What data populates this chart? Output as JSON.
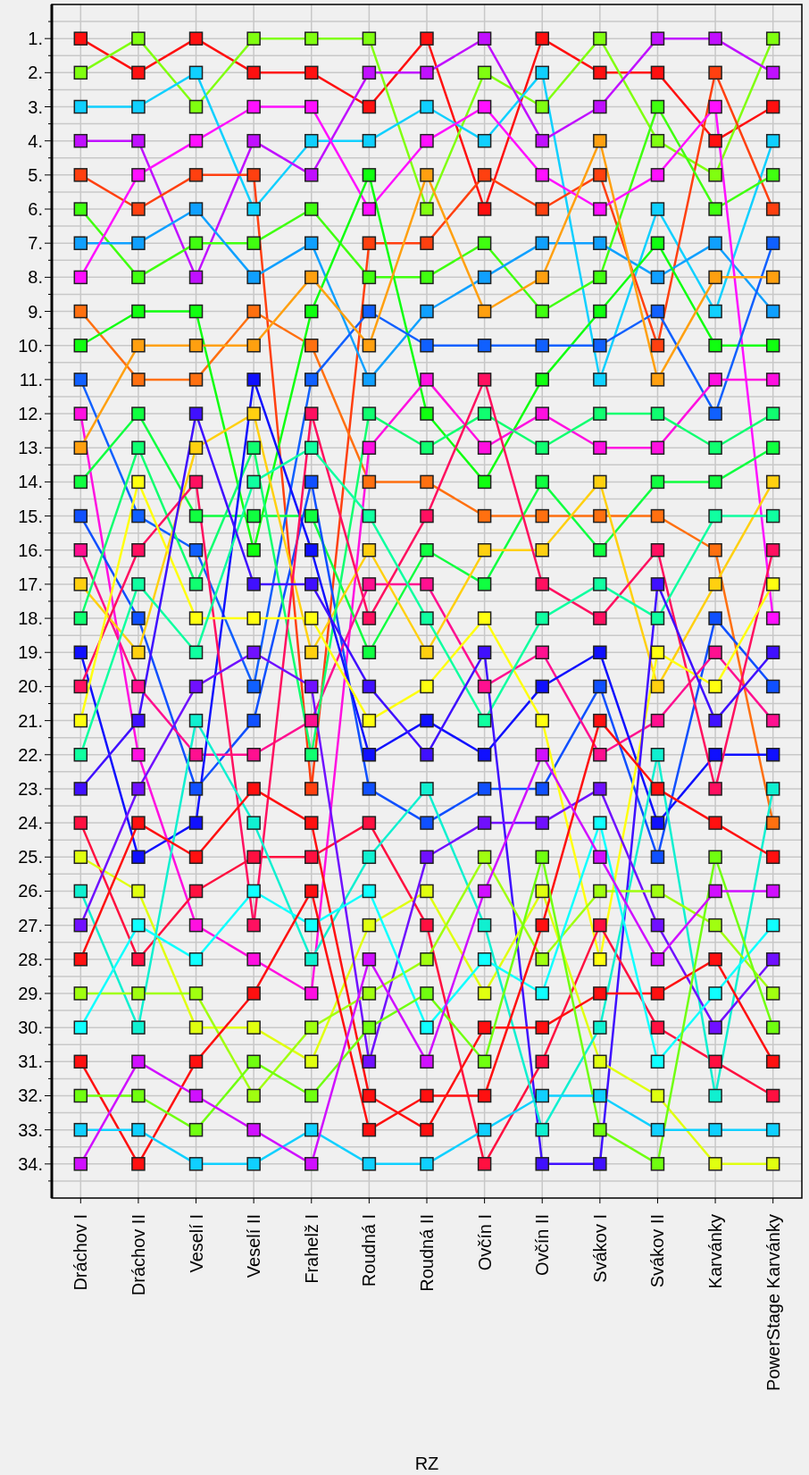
{
  "chart_data": {
    "type": "line",
    "xlabel": "RZ",
    "categories": [
      "Dráchov I",
      "Dráchov II",
      "Veselí I",
      "Veselí II",
      "Frahelž I",
      "Roudná I",
      "Roudná II",
      "Ovčín I",
      "Ovčín II",
      "Svákov I",
      "Svákov II",
      "Karvánky",
      "PowerStage Karvánky"
    ],
    "ylim": [
      35,
      0
    ],
    "yticks": [
      {
        "value": 0.5,
        "label": null
      },
      {
        "value": 1,
        "label": "1."
      },
      {
        "value": 1.5,
        "label": null
      },
      {
        "value": 2,
        "label": "2."
      },
      {
        "value": 2.5,
        "label": null
      },
      {
        "value": 3,
        "label": "3."
      },
      {
        "value": 3.5,
        "label": null
      },
      {
        "value": 4,
        "label": "4."
      },
      {
        "value": 4.5,
        "label": null
      },
      {
        "value": 5,
        "label": "5."
      },
      {
        "value": 5.5,
        "label": null
      },
      {
        "value": 6,
        "label": "6."
      },
      {
        "value": 6.5,
        "label": null
      },
      {
        "value": 7,
        "label": "7."
      },
      {
        "value": 7.5,
        "label": null
      },
      {
        "value": 8,
        "label": "8."
      },
      {
        "value": 8.5,
        "label": null
      },
      {
        "value": 9,
        "label": "9."
      },
      {
        "value": 9.5,
        "label": null
      },
      {
        "value": 10,
        "label": "10."
      },
      {
        "value": 10.5,
        "label": null
      },
      {
        "value": 11,
        "label": "11."
      },
      {
        "value": 11.5,
        "label": null
      },
      {
        "value": 12,
        "label": "12."
      },
      {
        "value": 12.5,
        "label": null
      },
      {
        "value": 13,
        "label": "13."
      },
      {
        "value": 13.5,
        "label": null
      },
      {
        "value": 14,
        "label": "14."
      },
      {
        "value": 14.5,
        "label": null
      },
      {
        "value": 15,
        "label": "15."
      },
      {
        "value": 15.5,
        "label": null
      },
      {
        "value": 16,
        "label": "16."
      },
      {
        "value": 16.5,
        "label": null
      },
      {
        "value": 17,
        "label": "17."
      },
      {
        "value": 17.5,
        "label": null
      },
      {
        "value": 18,
        "label": "18."
      },
      {
        "value": 18.5,
        "label": null
      },
      {
        "value": 19,
        "label": "19."
      },
      {
        "value": 19.5,
        "label": null
      },
      {
        "value": 20,
        "label": "20."
      },
      {
        "value": 20.5,
        "label": null
      },
      {
        "value": 21,
        "label": "21."
      },
      {
        "value": 21.5,
        "label": null
      },
      {
        "value": 22,
        "label": "22."
      },
      {
        "value": 22.5,
        "label": null
      },
      {
        "value": 23,
        "label": "23."
      },
      {
        "value": 23.5,
        "label": null
      },
      {
        "value": 24,
        "label": "24."
      },
      {
        "value": 24.5,
        "label": null
      },
      {
        "value": 25,
        "label": "25."
      },
      {
        "value": 25.5,
        "label": null
      },
      {
        "value": 26,
        "label": "26."
      },
      {
        "value": 26.5,
        "label": null
      },
      {
        "value": 27,
        "label": "27."
      },
      {
        "value": 27.5,
        "label": null
      },
      {
        "value": 28,
        "label": "28."
      },
      {
        "value": 28.5,
        "label": null
      },
      {
        "value": 29,
        "label": "29."
      },
      {
        "value": 29.5,
        "label": null
      },
      {
        "value": 30,
        "label": "30."
      },
      {
        "value": 30.5,
        "label": null
      },
      {
        "value": 31,
        "label": "31."
      },
      {
        "value": 31.5,
        "label": null
      },
      {
        "value": 32,
        "label": "32."
      },
      {
        "value": 32.5,
        "label": null
      },
      {
        "value": 33,
        "label": "33."
      },
      {
        "value": 33.5,
        "label": null
      },
      {
        "value": 34,
        "label": "34."
      },
      {
        "value": 34.5,
        "label": null
      }
    ],
    "grid": true,
    "marker": "square",
    "line_style": "solid",
    "series": [
      {
        "color": "#ff1010",
        "values": [
          1,
          2,
          1,
          2,
          2,
          3,
          1,
          6,
          1,
          2,
          2,
          4,
          3
        ]
      },
      {
        "color": "#80ff10",
        "values": [
          2,
          1,
          3,
          1,
          1,
          1,
          6,
          2,
          3,
          1,
          4,
          5,
          1
        ]
      },
      {
        "color": "#10d0ff",
        "values": [
          3,
          3,
          2,
          6,
          4,
          4,
          3,
          4,
          2,
          11,
          6,
          9,
          4
        ]
      },
      {
        "color": "#c010ff",
        "values": [
          4,
          4,
          8,
          4,
          5,
          2,
          2,
          1,
          4,
          3,
          1,
          1,
          2
        ]
      },
      {
        "color": "#ff4010",
        "values": [
          5,
          6,
          5,
          5,
          23,
          7,
          7,
          5,
          6,
          5,
          10,
          2,
          6
        ]
      },
      {
        "color": "#40ff10",
        "values": [
          6,
          8,
          7,
          7,
          6,
          8,
          8,
          7,
          9,
          8,
          3,
          6,
          5
        ]
      },
      {
        "color": "#10a0ff",
        "values": [
          7,
          7,
          6,
          8,
          7,
          11,
          9,
          8,
          7,
          7,
          8,
          7,
          9
        ]
      },
      {
        "color": "#ff10ff",
        "values": [
          8,
          5,
          4,
          3,
          3,
          6,
          4,
          3,
          5,
          6,
          5,
          3,
          18
        ]
      },
      {
        "color": "#ff7010",
        "values": [
          9,
          11,
          11,
          9,
          10,
          14,
          14,
          15,
          15,
          15,
          15,
          16,
          24
        ]
      },
      {
        "color": "#10ff10",
        "values": [
          10,
          9,
          9,
          16,
          9,
          5,
          12,
          14,
          11,
          9,
          7,
          10,
          10
        ]
      },
      {
        "color": "#1060ff",
        "values": [
          11,
          15,
          16,
          20,
          11,
          9,
          10,
          10,
          10,
          10,
          9,
          12,
          7
        ]
      },
      {
        "color": "#ff10e0",
        "values": [
          12,
          22,
          27,
          28,
          29,
          13,
          11,
          13,
          12,
          13,
          13,
          11,
          11
        ]
      },
      {
        "color": "#ffa010",
        "values": [
          13,
          10,
          10,
          10,
          8,
          10,
          5,
          9,
          8,
          4,
          11,
          8,
          8
        ]
      },
      {
        "color": "#10ff40",
        "values": [
          14,
          12,
          15,
          15,
          15,
          19,
          16,
          17,
          14,
          16,
          14,
          14,
          13
        ]
      },
      {
        "color": "#1050ff",
        "values": [
          15,
          18,
          23,
          21,
          14,
          23,
          24,
          23,
          23,
          20,
          25,
          18,
          20
        ]
      },
      {
        "color": "#ff1090",
        "values": [
          16,
          20,
          22,
          22,
          21,
          17,
          17,
          20,
          19,
          22,
          21,
          19,
          21
        ]
      },
      {
        "color": "#ffd010",
        "values": [
          17,
          19,
          13,
          12,
          19,
          16,
          19,
          16,
          16,
          14,
          20,
          17,
          14
        ]
      },
      {
        "color": "#10ff70",
        "values": [
          18,
          13,
          17,
          13,
          22,
          12,
          13,
          12,
          13,
          12,
          12,
          13,
          12
        ]
      },
      {
        "color": "#1010ff",
        "values": [
          19,
          25,
          24,
          11,
          16,
          22,
          21,
          22,
          20,
          19,
          24,
          22,
          22
        ]
      },
      {
        "color": "#ff1060",
        "values": [
          20,
          16,
          14,
          27,
          12,
          18,
          15,
          11,
          17,
          18,
          16,
          23,
          16
        ]
      },
      {
        "color": "#ffff10",
        "values": [
          21,
          14,
          18,
          18,
          18,
          21,
          20,
          18,
          21,
          28,
          19,
          20,
          17
        ]
      },
      {
        "color": "#10ffa0",
        "values": [
          22,
          17,
          19,
          14,
          13,
          15,
          18,
          21,
          18,
          17,
          18,
          15,
          15
        ]
      },
      {
        "color": "#4010ff",
        "values": [
          23,
          21,
          12,
          17,
          17,
          20,
          22,
          19,
          34,
          34,
          17,
          21,
          19
        ]
      },
      {
        "color": "#ff1040",
        "values": [
          24,
          28,
          26,
          25,
          25,
          24,
          27,
          34,
          31,
          27,
          30,
          31,
          32
        ]
      },
      {
        "color": "#e0ff10",
        "values": [
          25,
          26,
          30,
          30,
          31,
          27,
          26,
          29,
          26,
          31,
          32,
          34,
          34
        ]
      },
      {
        "color": "#10f0d0",
        "values": [
          26,
          30,
          21,
          24,
          28,
          25,
          23,
          27,
          33,
          30,
          22,
          32,
          23
        ]
      },
      {
        "color": "#7010ff",
        "values": [
          27,
          23,
          20,
          19,
          20,
          31,
          25,
          24,
          24,
          23,
          27,
          30,
          28
        ]
      },
      {
        "color": "#ff1010",
        "values": [
          28,
          24,
          25,
          23,
          24,
          32,
          33,
          30,
          30,
          29,
          29,
          28,
          31
        ]
      },
      {
        "color": "#a0ff10",
        "values": [
          29,
          29,
          29,
          32,
          30,
          29,
          28,
          25,
          28,
          26,
          26,
          27,
          29
        ]
      },
      {
        "color": "#10ffff",
        "values": [
          30,
          27,
          28,
          26,
          27,
          26,
          30,
          28,
          29,
          24,
          31,
          29,
          27
        ]
      },
      {
        "color": "#ff1010",
        "values": [
          31,
          34,
          31,
          29,
          26,
          33,
          32,
          32,
          27,
          21,
          23,
          24,
          25
        ]
      },
      {
        "color": "#70ff10",
        "values": [
          32,
          32,
          33,
          31,
          32,
          30,
          29,
          31,
          25,
          33,
          34,
          25,
          30
        ]
      },
      {
        "color": "#10d0ff",
        "values": [
          33,
          33,
          34,
          34,
          33,
          34,
          34,
          33,
          32,
          32,
          33,
          33,
          33
        ]
      },
      {
        "color": "#d010ff",
        "values": [
          34,
          31,
          32,
          33,
          34,
          28,
          31,
          26,
          22,
          25,
          28,
          26,
          26
        ]
      }
    ]
  }
}
